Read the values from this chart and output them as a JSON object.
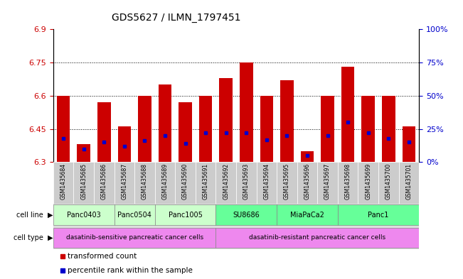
{
  "title": "GDS5627 / ILMN_1797451",
  "samples": [
    "GSM1435684",
    "GSM1435685",
    "GSM1435686",
    "GSM1435687",
    "GSM1435688",
    "GSM1435689",
    "GSM1435690",
    "GSM1435691",
    "GSM1435692",
    "GSM1435693",
    "GSM1435694",
    "GSM1435695",
    "GSM1435696",
    "GSM1435697",
    "GSM1435698",
    "GSM1435699",
    "GSM1435700",
    "GSM1435701"
  ],
  "bar_values": [
    6.6,
    6.38,
    6.57,
    6.46,
    6.6,
    6.65,
    6.57,
    6.6,
    6.68,
    6.75,
    6.6,
    6.67,
    6.35,
    6.6,
    6.73,
    6.6,
    6.6,
    6.46
  ],
  "percentile_values": [
    18,
    10,
    15,
    12,
    16,
    20,
    14,
    22,
    22,
    22,
    17,
    20,
    5,
    20,
    30,
    22,
    18,
    15
  ],
  "bar_bottom": 6.3,
  "ylim_left": [
    6.3,
    6.9
  ],
  "ylim_right": [
    0,
    100
  ],
  "yticks_left": [
    6.3,
    6.45,
    6.6,
    6.75,
    6.9
  ],
  "yticks_right": [
    0,
    25,
    50,
    75,
    100
  ],
  "ytick_labels_right": [
    "0%",
    "25%",
    "50%",
    "75%",
    "100%"
  ],
  "hlines": [
    6.45,
    6.6,
    6.75
  ],
  "bar_color": "#cc0000",
  "percentile_color": "#0000cc",
  "cell_lines": [
    {
      "label": "Panc0403",
      "start": 0,
      "end": 2,
      "color": "#ccffcc"
    },
    {
      "label": "Panc0504",
      "start": 3,
      "end": 4,
      "color": "#ccffcc"
    },
    {
      "label": "Panc1005",
      "start": 5,
      "end": 7,
      "color": "#ccffcc"
    },
    {
      "label": "SU8686",
      "start": 8,
      "end": 10,
      "color": "#66ff99"
    },
    {
      "label": "MiaPaCa2",
      "start": 11,
      "end": 13,
      "color": "#66ff99"
    },
    {
      "label": "Panc1",
      "start": 14,
      "end": 17,
      "color": "#66ff99"
    }
  ],
  "cell_types": [
    {
      "label": "dasatinib-sensitive pancreatic cancer cells",
      "start": 0,
      "end": 7,
      "color": "#ee88ee"
    },
    {
      "label": "dasatinib-resistant pancreatic cancer cells",
      "start": 8,
      "end": 17,
      "color": "#ee88ee"
    }
  ],
  "tick_color_left": "#cc0000",
  "tick_color_right": "#0000cc",
  "sample_bg_color": "#cccccc",
  "left_label_bg": "#dddddd",
  "legend": [
    {
      "label": "transformed count",
      "color": "#cc0000"
    },
    {
      "label": "percentile rank within the sample",
      "color": "#0000cc"
    }
  ]
}
